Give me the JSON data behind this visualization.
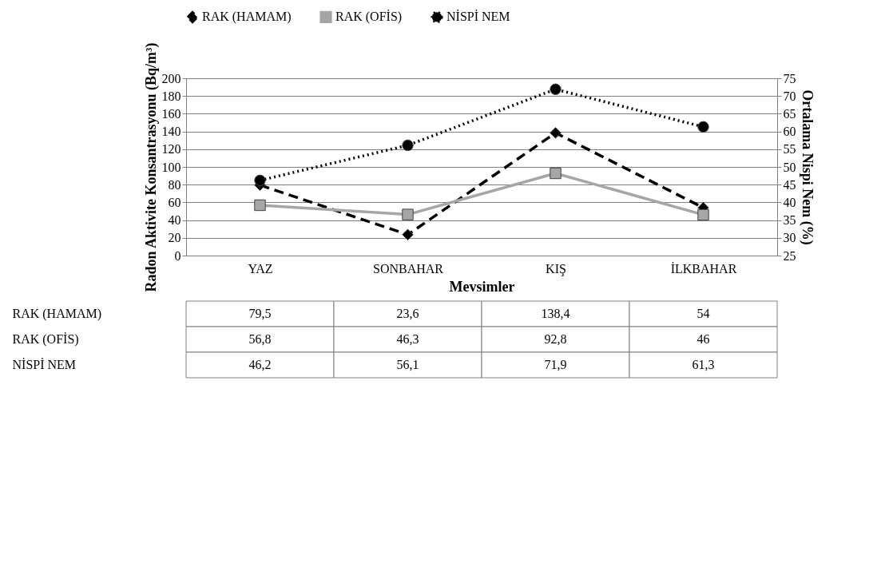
{
  "chart_data": {
    "type": "line",
    "categories": [
      "YAZ",
      "SONBAHAR",
      "KIŞ",
      "İLKBAHAR"
    ],
    "series": [
      {
        "name": "RAK (HAMAM)",
        "color": "#000000",
        "values": [
          79.5,
          23.6,
          138.4,
          54
        ],
        "marker": "diamond",
        "line_style": "dashed",
        "value_labels": [
          "79,5",
          "23,6",
          "138,4",
          "54"
        ]
      },
      {
        "name": "RAK (OFİS)",
        "color": "#a6a6a6",
        "values": [
          56.8,
          46.3,
          92.8,
          46
        ],
        "marker": "square",
        "line_style": "solid",
        "value_labels": [
          "56,8",
          "46,3",
          "92,8",
          "46"
        ]
      },
      {
        "name": "NİSPİ NEM",
        "color": "#000000",
        "values": [
          46.2,
          56.1,
          71.9,
          61.3
        ],
        "axis": "y2",
        "marker": "circle",
        "line_style": "dotted",
        "value_labels": [
          "46,2",
          "56,1",
          "71,9",
          "61,3"
        ]
      }
    ],
    "xlabel": "Mevsimler",
    "ylabel": "Radon Aktivite Konsantrasyonu (Bq/m³)",
    "y2label": "Ortalama Nispi Nem (%)",
    "ylim": [
      0,
      200
    ],
    "yticks": [
      0,
      20,
      40,
      60,
      80,
      100,
      120,
      140,
      160,
      180,
      200
    ],
    "y2lim": [
      25,
      75
    ],
    "y2ticks": [
      25,
      30,
      35,
      40,
      45,
      50,
      55,
      60,
      65,
      70,
      75
    ],
    "grid": "y",
    "legend": "top"
  }
}
